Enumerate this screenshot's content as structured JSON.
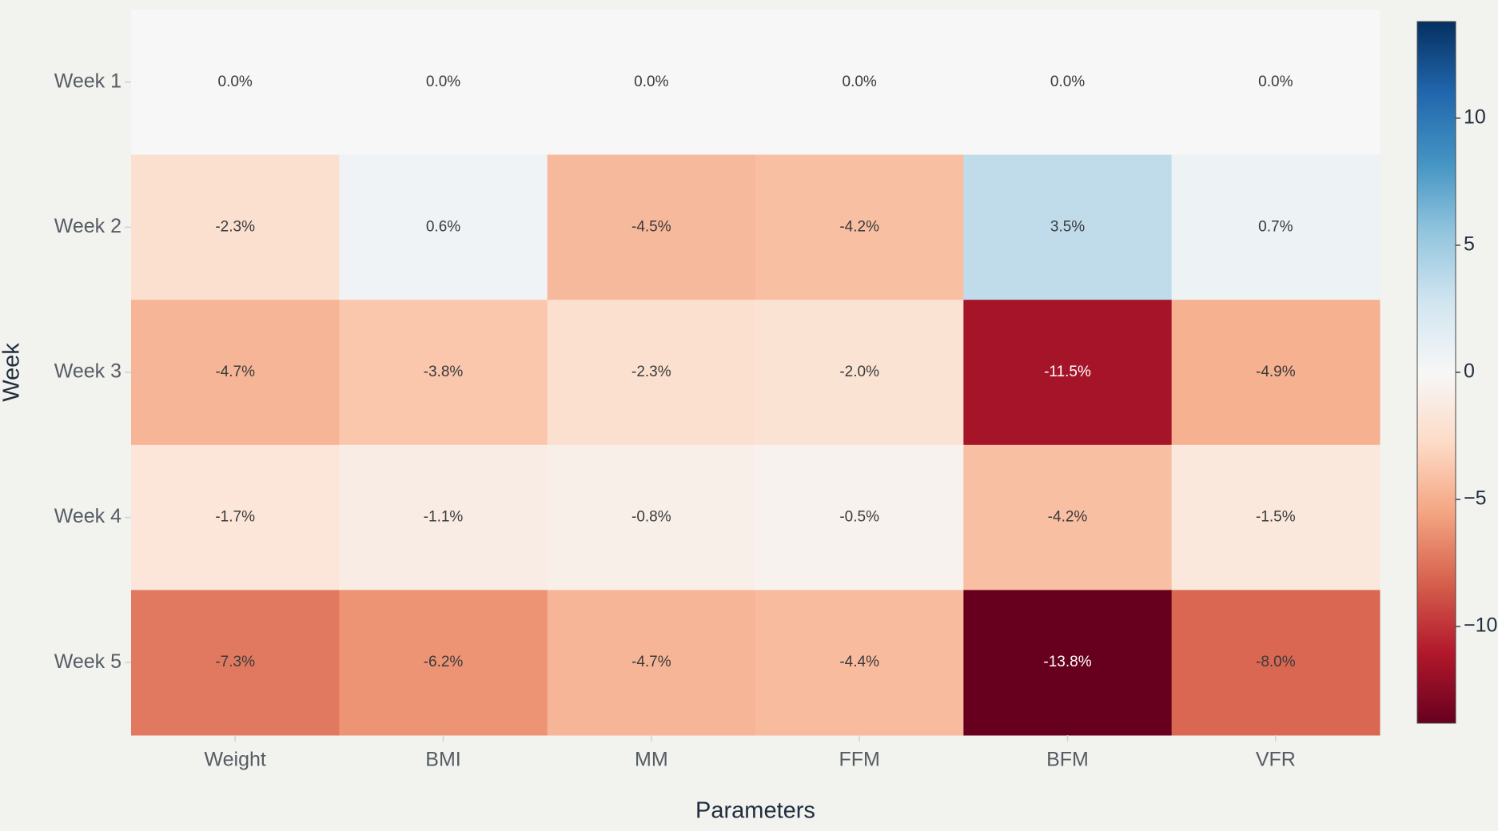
{
  "chart_data": {
    "type": "heatmap",
    "x_label": "Parameters",
    "y_label": "Week",
    "x": [
      "Weight",
      "BMI",
      "MM",
      "FFM",
      "BFM",
      "VFR"
    ],
    "y": [
      "Week 1",
      "Week 2",
      "Week 3",
      "Week 4",
      "Week 5"
    ],
    "z": [
      [
        0.0,
        0.0,
        0.0,
        0.0,
        0.0,
        0.0
      ],
      [
        -2.3,
        0.6,
        -4.5,
        -4.2,
        3.5,
        0.7
      ],
      [
        -4.7,
        -3.8,
        -2.3,
        -2.0,
        -11.5,
        -4.9
      ],
      [
        -1.7,
        -1.1,
        -0.8,
        -0.5,
        -4.2,
        -1.5
      ],
      [
        -7.3,
        -6.2,
        -4.7,
        -4.4,
        -13.8,
        -8.0
      ]
    ],
    "value_labels": [
      [
        "0.0%",
        "0.0%",
        "0.0%",
        "0.0%",
        "0.0%",
        "0.0%"
      ],
      [
        "-2.3%",
        "0.6%",
        "-4.5%",
        "-4.2%",
        "3.5%",
        "0.7%"
      ],
      [
        "-4.7%",
        "-3.8%",
        "-2.3%",
        "-2.0%",
        "-11.5%",
        "-4.9%"
      ],
      [
        "-1.7%",
        "-1.1%",
        "-0.8%",
        "-0.5%",
        "-4.2%",
        "-1.5%"
      ],
      [
        "-7.3%",
        "-6.2%",
        "-4.7%",
        "-4.4%",
        "-13.8%",
        "-8.0%"
      ]
    ],
    "zlim": [
      -13.8,
      13.8
    ],
    "colorbar_ticks": [
      {
        "value": -10,
        "label": "−10"
      },
      {
        "value": -5,
        "label": "−5"
      },
      0,
      5,
      10
    ],
    "colorscale": [
      "#67001f",
      "#b2182b",
      "#d6604d",
      "#f4a582",
      "#fddbc7",
      "#f7f7f7",
      "#d1e5f0",
      "#92c5de",
      "#4393c3",
      "#2166ac",
      "#053061"
    ]
  }
}
